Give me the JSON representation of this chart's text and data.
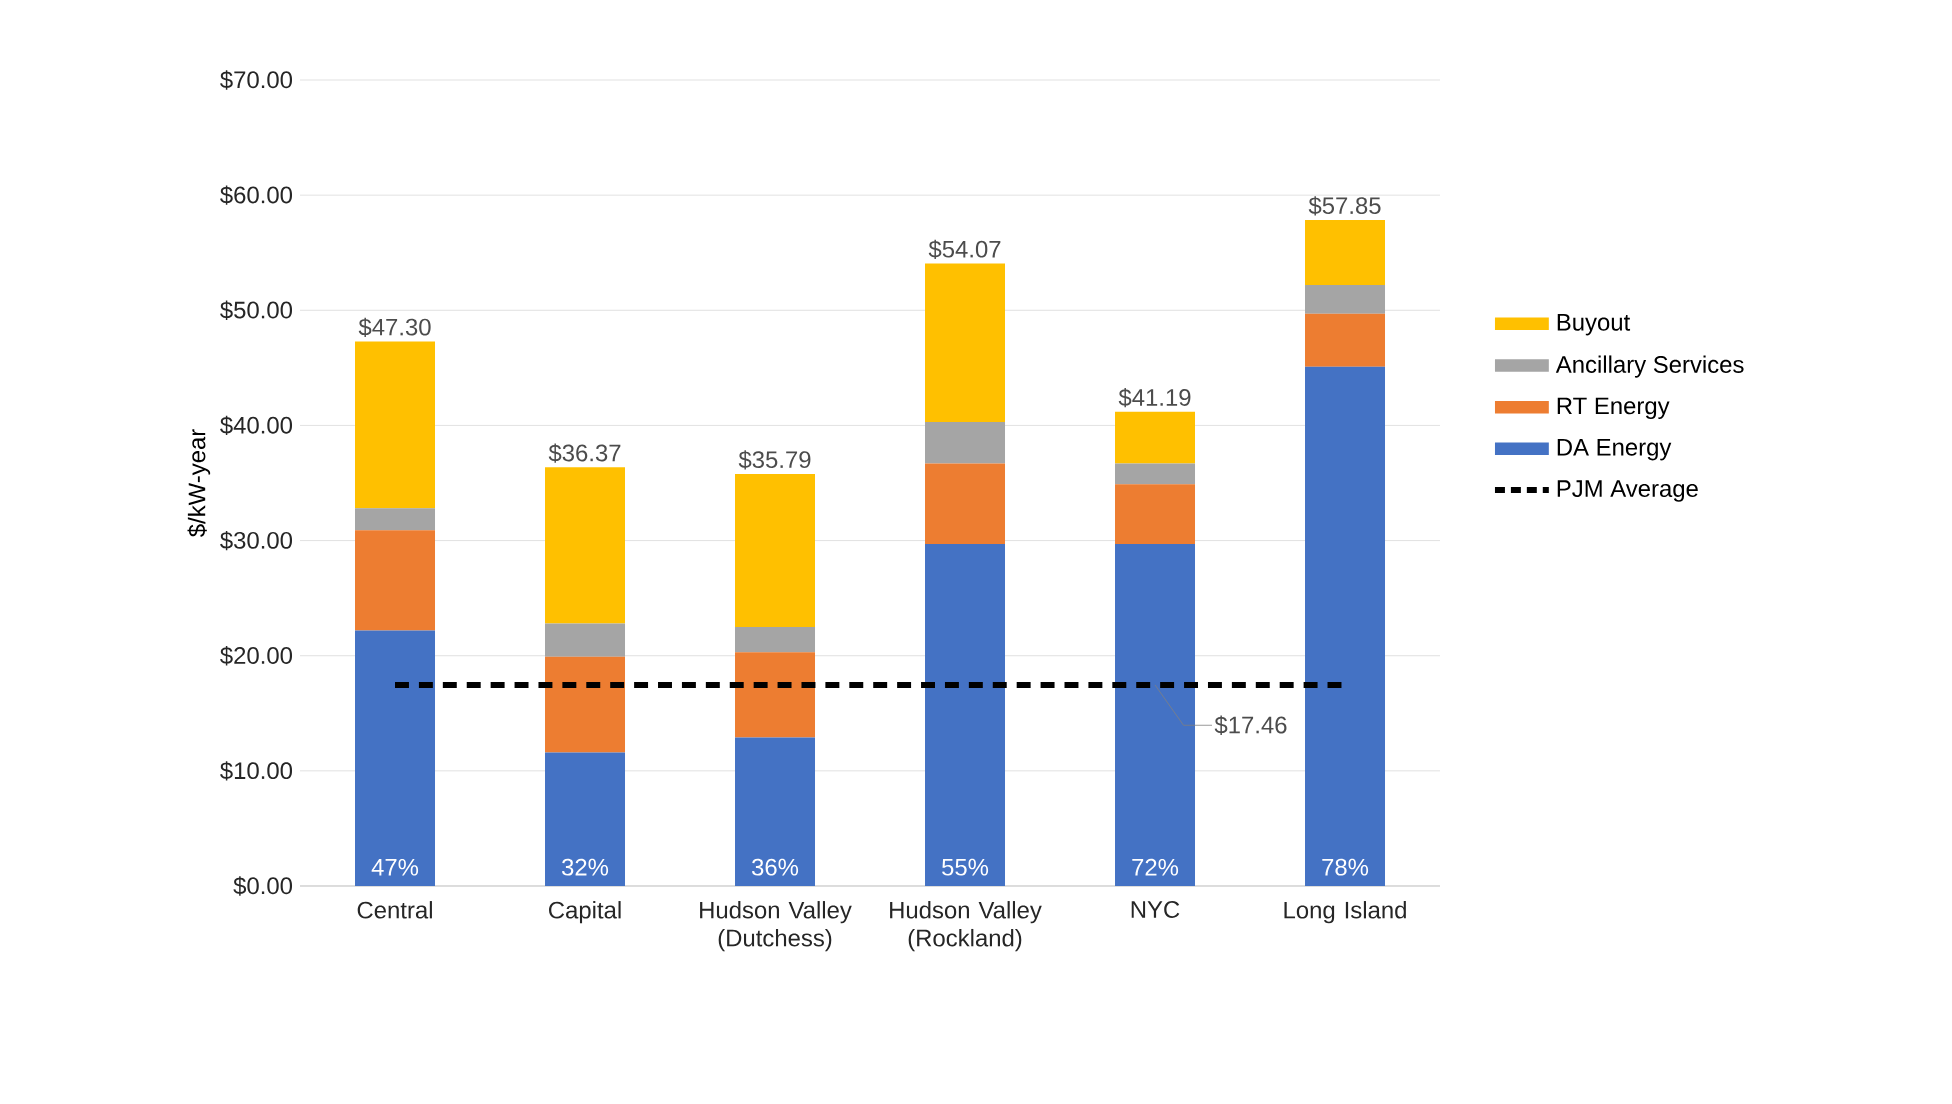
{
  "chart_data": {
    "type": "bar",
    "stacked": true,
    "ylabel": "$/kW-year",
    "categories": [
      "Central",
      "Capital",
      "Hudson Valley (Dutchess)",
      "Hudson Valley (Rockland)",
      "NYC",
      "Long Island"
    ],
    "series": [
      {
        "name": "DA Energy",
        "color": "#4472c4",
        "values": [
          22.2,
          11.6,
          12.9,
          29.7,
          29.7,
          45.1
        ]
      },
      {
        "name": "RT Energy",
        "color": "#ed7d31",
        "values": [
          8.7,
          8.3,
          7.4,
          7.0,
          5.2,
          4.6
        ]
      },
      {
        "name": "Ancillary Services",
        "color": "#a5a5a5",
        "values": [
          1.9,
          2.9,
          2.2,
          3.6,
          1.8,
          2.5
        ]
      },
      {
        "name": "Buyout",
        "color": "#ffc000",
        "values": [
          14.5,
          13.57,
          13.29,
          13.77,
          4.49,
          5.65
        ]
      },
      {
        "name": "PJM Average",
        "type": "line",
        "color": "#000000",
        "line_style": "dashed",
        "values": [
          17.46,
          17.46,
          17.46,
          17.46,
          17.46,
          17.46
        ]
      }
    ],
    "totals": [
      "$47.30",
      "$36.37",
      "$35.79",
      "$54.07",
      "$41.19",
      "$57.85"
    ],
    "annotations": [
      {
        "text": "$17.46",
        "x": "NYC",
        "y": 17.46
      },
      "47%",
      "32%",
      "36%",
      "55%",
      "72%",
      "78%"
    ],
    "ylim": [
      0,
      70
    ],
    "yticks": [
      {
        "value": 0,
        "label": "$0.00"
      },
      {
        "value": 10,
        "label": "$10.00"
      },
      {
        "value": 20,
        "label": "$20.00"
      },
      {
        "value": 30,
        "label": "$30.00"
      },
      {
        "value": 40,
        "label": "$40.00"
      },
      {
        "value": 50,
        "label": "$50.00"
      },
      {
        "value": 60,
        "label": "$60.00"
      },
      {
        "value": 70,
        "label": "$70.00"
      }
    ],
    "grid": "y",
    "legend": "right"
  }
}
